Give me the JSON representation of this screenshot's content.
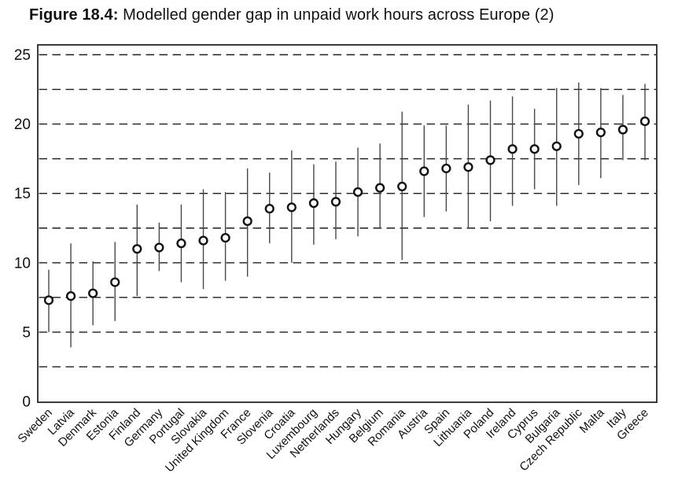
{
  "title": {
    "label": "Figure 18.4:",
    "text": " Modelled gender gap in unpaid work hours across Europe (2)"
  },
  "colors": {
    "background": "#ffffff",
    "frame": "#1a1a1a",
    "gridline": "#1f1f1f",
    "error_bar": "#474747",
    "marker_stroke": "#111111",
    "marker_fill": "#ffffff",
    "text": "#111111"
  },
  "chart_data": {
    "type": "scatter",
    "title": "Figure 18.4: Modelled gender gap in unpaid work hours across Europe (2)",
    "xlabel": "",
    "ylabel": "",
    "ylim": [
      0,
      25.7
    ],
    "yticks": [
      0,
      5,
      10,
      15,
      20,
      25
    ],
    "gridline_interval": 2.5,
    "grid_style": "horizontal dashed",
    "legend_position": "none",
    "marker": "open-circle",
    "series_name": "Modelled gender gap in unpaid work hours (with confidence interval)",
    "points": [
      {
        "country": "Sweden",
        "value": 7.3,
        "ci_low": 5.0,
        "ci_high": 9.5
      },
      {
        "country": "Latvia",
        "value": 7.6,
        "ci_low": 3.9,
        "ci_high": 11.4
      },
      {
        "country": "Denmark",
        "value": 7.8,
        "ci_low": 5.5,
        "ci_high": 10.1
      },
      {
        "country": "Estonia",
        "value": 8.6,
        "ci_low": 5.8,
        "ci_high": 11.5
      },
      {
        "country": "Finland",
        "value": 11.0,
        "ci_low": 7.6,
        "ci_high": 14.2
      },
      {
        "country": "Germany",
        "value": 11.1,
        "ci_low": 9.4,
        "ci_high": 12.9
      },
      {
        "country": "Portugal",
        "value": 11.4,
        "ci_low": 8.6,
        "ci_high": 14.2
      },
      {
        "country": "Slovakia",
        "value": 11.6,
        "ci_low": 8.1,
        "ci_high": 15.3
      },
      {
        "country": "United Kingdom",
        "value": 11.8,
        "ci_low": 8.7,
        "ci_high": 15.1
      },
      {
        "country": "France",
        "value": 13.0,
        "ci_low": 9.0,
        "ci_high": 16.8
      },
      {
        "country": "Slovenia",
        "value": 13.9,
        "ci_low": 11.4,
        "ci_high": 16.5
      },
      {
        "country": "Croatia",
        "value": 14.0,
        "ci_low": 10.0,
        "ci_high": 18.1
      },
      {
        "country": "Luxembourg",
        "value": 14.3,
        "ci_low": 11.3,
        "ci_high": 17.1
      },
      {
        "country": "Netherlands",
        "value": 14.4,
        "ci_low": 11.7,
        "ci_high": 17.3
      },
      {
        "country": "Hungary",
        "value": 15.1,
        "ci_low": 11.9,
        "ci_high": 18.3
      },
      {
        "country": "Belgium",
        "value": 15.4,
        "ci_low": 12.5,
        "ci_high": 18.6
      },
      {
        "country": "Romania",
        "value": 15.5,
        "ci_low": 10.2,
        "ci_high": 20.9
      },
      {
        "country": "Austria",
        "value": 16.6,
        "ci_low": 13.3,
        "ci_high": 19.9
      },
      {
        "country": "Spain",
        "value": 16.8,
        "ci_low": 13.7,
        "ci_high": 19.9
      },
      {
        "country": "Lithuania",
        "value": 16.9,
        "ci_low": 12.5,
        "ci_high": 21.4
      },
      {
        "country": "Poland",
        "value": 17.4,
        "ci_low": 13.0,
        "ci_high": 21.7
      },
      {
        "country": "Ireland",
        "value": 18.2,
        "ci_low": 14.1,
        "ci_high": 22.0
      },
      {
        "country": "Cyprus",
        "value": 18.2,
        "ci_low": 15.3,
        "ci_high": 21.1
      },
      {
        "country": "Bulgaria",
        "value": 18.4,
        "ci_low": 14.1,
        "ci_high": 22.6
      },
      {
        "country": "Czech Republic",
        "value": 19.3,
        "ci_low": 15.6,
        "ci_high": 23.0
      },
      {
        "country": "Malta",
        "value": 19.4,
        "ci_low": 16.1,
        "ci_high": 22.6
      },
      {
        "country": "Italy",
        "value": 19.6,
        "ci_low": 17.4,
        "ci_high": 22.1
      },
      {
        "country": "Greece",
        "value": 20.2,
        "ci_low": 17.4,
        "ci_high": 22.9
      }
    ]
  }
}
